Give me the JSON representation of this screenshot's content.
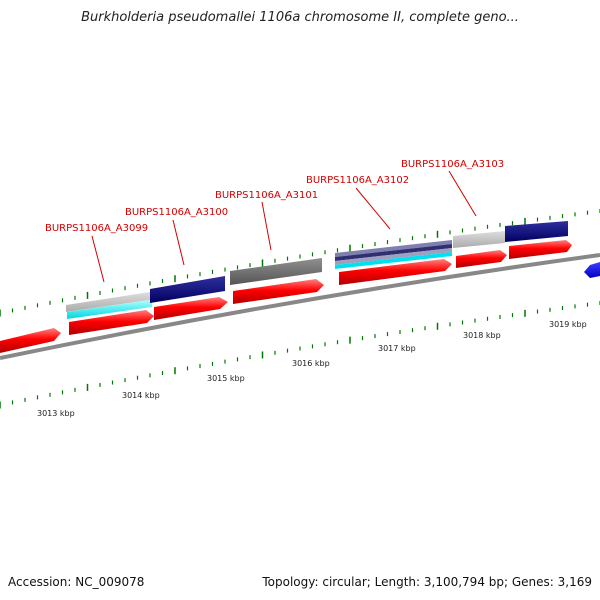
{
  "title": "Burkholderia pseudomallei 1106a chromosome II, complete geno...",
  "accession": "Accession: NC_009078",
  "topology": "Topology: circular; Length: 3,100,794 bp; Genes: 3,169",
  "gene_labels": {
    "g3099": "BURPS1106A_A3099",
    "g3100": "BURPS1106A_A3100",
    "g3101": "BURPS1106A_A3101",
    "g3102": "BURPS1106A_A3102",
    "g3103": "BURPS1106A_A3103"
  },
  "kbp_labels": {
    "k3013": "3013 kbp",
    "k3014": "3014 kbp",
    "k3015": "3015 kbp",
    "k3016": "3016 kbp",
    "k3017": "3017 kbp",
    "k3018": "3018 kbp",
    "k3019": "3019 kbp"
  },
  "colors": {
    "cds_red": "#ff0000",
    "feature_navy": "#000080",
    "feature_cyan": "#00ffff",
    "feature_gray": "#808080",
    "feature_lightgray": "#c0c0c0",
    "tick_green": "#007700",
    "label_red": "#d00000",
    "backbone": "#888888",
    "blue_arrow": "#0000ff"
  }
}
